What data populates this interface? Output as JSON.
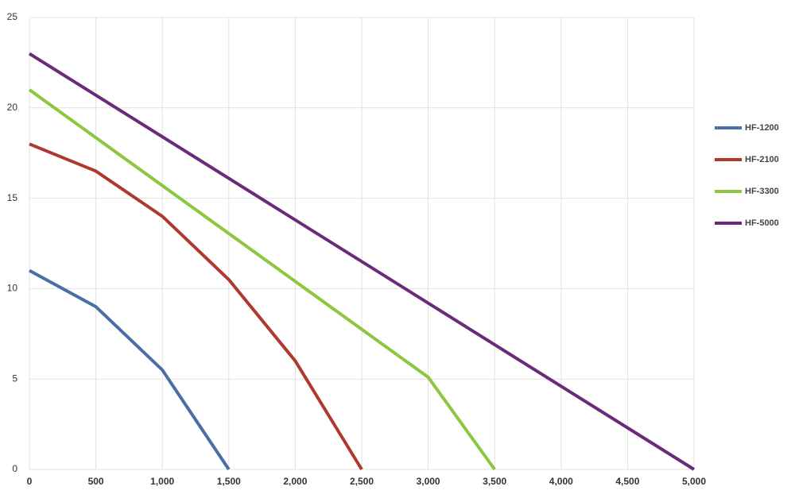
{
  "chart_data": {
    "type": "line",
    "xlim": [
      0,
      5000
    ],
    "xticks": [
      0,
      500,
      {
        "value": 1000,
        "label": "1,000"
      },
      {
        "value": 1500,
        "label": "1,500"
      },
      {
        "value": 2000,
        "label": "2,000"
      },
      {
        "value": 2500,
        "label": "2,500"
      },
      {
        "value": 3000,
        "label": "3,000"
      },
      {
        "value": 3500,
        "label": "3,500"
      },
      {
        "value": 4000,
        "label": "4,000"
      },
      {
        "value": 4500,
        "label": "4,500"
      },
      {
        "value": 5000,
        "label": "5,000"
      }
    ],
    "ylim": [
      0,
      25
    ],
    "yticks": [
      0,
      5,
      10,
      15,
      20,
      25
    ],
    "grid": true,
    "legend": "right",
    "series": [
      {
        "name": "HF-1200",
        "color": "#4a6fa5",
        "x": [
          0,
          500,
          1000,
          1500
        ],
        "values": [
          11,
          9,
          5.5,
          0
        ]
      },
      {
        "name": "HF-2100",
        "color": "#b0392f",
        "x": [
          0,
          500,
          1000,
          1500,
          2000,
          2500
        ],
        "values": [
          18,
          16.5,
          14,
          10.5,
          6,
          0
        ]
      },
      {
        "name": "HF-3300",
        "color": "#8dc63f",
        "x": [
          0,
          3000,
          3500
        ],
        "values": [
          21,
          5.1,
          0
        ]
      },
      {
        "name": "HF-5000",
        "color": "#6a2c7a",
        "x": [
          0,
          5000
        ],
        "values": [
          23,
          0
        ]
      }
    ]
  }
}
